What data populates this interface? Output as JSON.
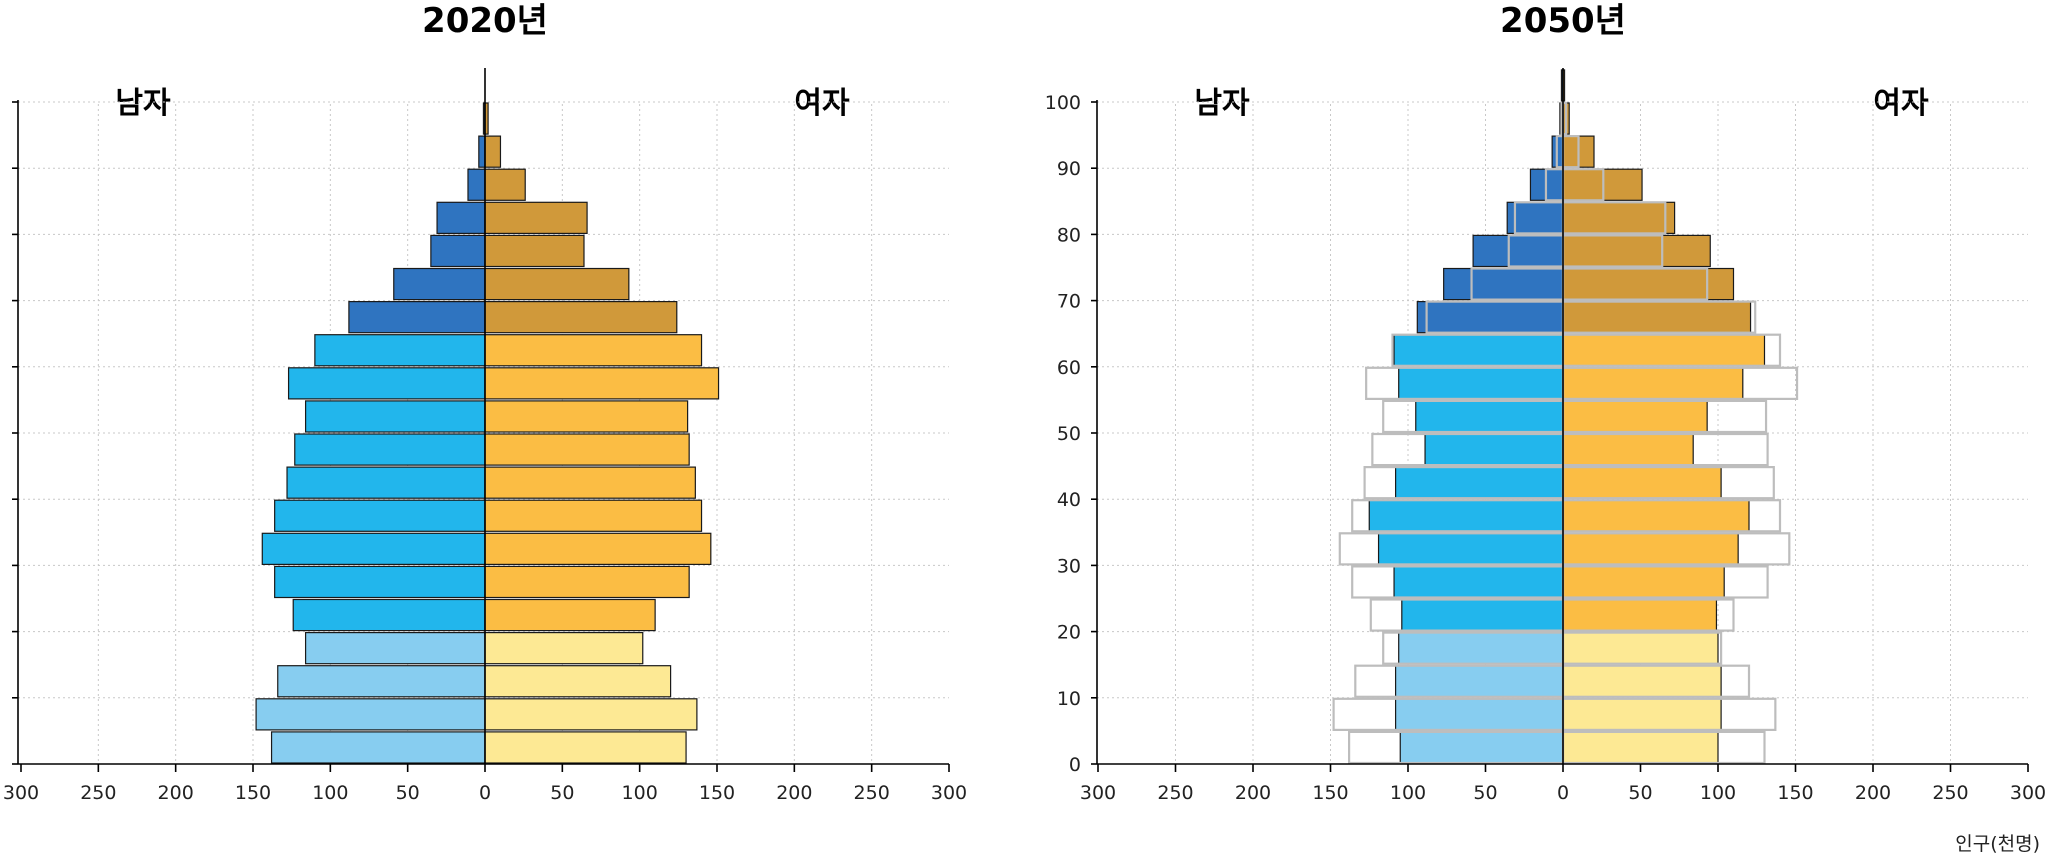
{
  "unit_label": "인구(천명)",
  "panel_left": {
    "title": "2020년",
    "male_label": "남자",
    "female_label": "여자"
  },
  "panel_right": {
    "title": "2050년",
    "male_label": "남자",
    "female_label": "여자"
  },
  "colors": {
    "male_young": "#87cdf0",
    "male_working": "#22b6ec",
    "male_old": "#2f74c0",
    "female_young": "#fde994",
    "female_working": "#fbbd44",
    "female_old": "#d0993a",
    "ghost_outline": "#bdbdbd"
  },
  "chart_data": [
    {
      "type": "bar",
      "subtype": "population-pyramid",
      "title": "2020년",
      "age_groups": [
        "0-4",
        "5-9",
        "10-14",
        "15-19",
        "20-24",
        "25-29",
        "30-34",
        "35-39",
        "40-44",
        "45-49",
        "50-54",
        "55-59",
        "60-64",
        "65-69",
        "70-74",
        "75-79",
        "80-84",
        "85-89",
        "90-94",
        "95-99",
        "100+"
      ],
      "age_ticks": [],
      "series": [
        {
          "name": "남자",
          "values": [
            138,
            148,
            134,
            116,
            124,
            136,
            144,
            136,
            128,
            123,
            116,
            127,
            110,
            88,
            59,
            35,
            31,
            11,
            4,
            1,
            0
          ]
        },
        {
          "name": "여자",
          "values": [
            130,
            137,
            120,
            102,
            110,
            132,
            146,
            140,
            136,
            132,
            131,
            151,
            140,
            124,
            93,
            64,
            66,
            26,
            10,
            2,
            0
          ]
        }
      ],
      "xlabel": "",
      "xlim": [
        -300,
        300
      ],
      "x_ticks": [
        300,
        250,
        200,
        150,
        100,
        50,
        0,
        50,
        100,
        150,
        200,
        250,
        300
      ],
      "grid": true,
      "color_bands": {
        "young_max_index": 3,
        "working_max_index": 12
      }
    },
    {
      "type": "bar",
      "subtype": "population-pyramid",
      "title": "2050년",
      "age_groups": [
        "0-4",
        "5-9",
        "10-14",
        "15-19",
        "20-24",
        "25-29",
        "30-34",
        "35-39",
        "40-44",
        "45-49",
        "50-54",
        "55-59",
        "60-64",
        "65-69",
        "70-74",
        "75-79",
        "80-84",
        "85-89",
        "90-94",
        "95-99",
        "100+"
      ],
      "age_ticks": [
        0,
        10,
        20,
        30,
        40,
        50,
        60,
        70,
        80,
        90,
        100
      ],
      "series": [
        {
          "name": "남자",
          "values": [
            105,
            108,
            108,
            106,
            104,
            109,
            119,
            125,
            108,
            89,
            95,
            106,
            109,
            94,
            77,
            58,
            36,
            21,
            7,
            2,
            1
          ]
        },
        {
          "name": "여자",
          "values": [
            100,
            102,
            102,
            100,
            99,
            104,
            113,
            120,
            102,
            84,
            93,
            116,
            130,
            121,
            110,
            95,
            72,
            51,
            20,
            4,
            1
          ]
        }
      ],
      "reference_outline": {
        "label": "2020년",
        "male": [
          138,
          148,
          134,
          116,
          124,
          136,
          144,
          136,
          128,
          123,
          116,
          127,
          110,
          88,
          59,
          35,
          31,
          11,
          4,
          1,
          0
        ],
        "female": [
          130,
          137,
          120,
          102,
          110,
          132,
          146,
          140,
          136,
          132,
          131,
          151,
          140,
          124,
          93,
          64,
          66,
          26,
          10,
          2,
          0
        ]
      },
      "xlabel": "인구(천명)",
      "xlim": [
        -300,
        300
      ],
      "x_ticks": [
        300,
        250,
        200,
        150,
        100,
        50,
        0,
        50,
        100,
        150,
        200,
        250,
        300
      ],
      "grid": true,
      "color_bands": {
        "young_max_index": 3,
        "working_max_index": 12
      }
    }
  ]
}
